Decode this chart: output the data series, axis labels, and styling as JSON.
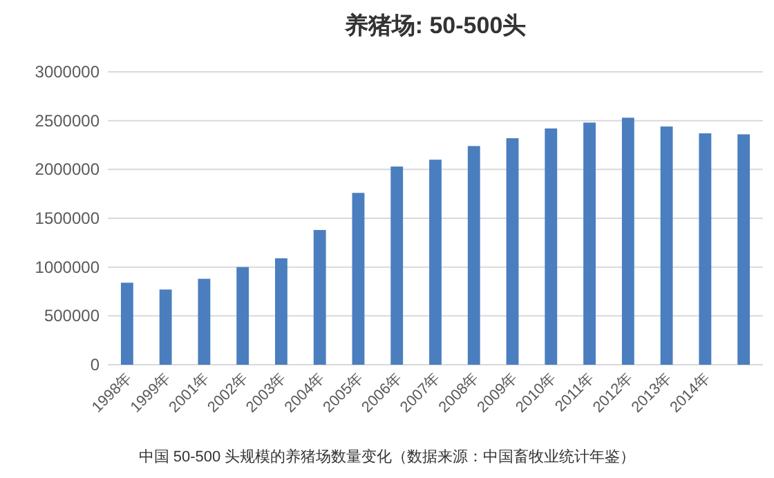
{
  "chart_data": {
    "type": "bar",
    "title": "养猪场: 50-500头",
    "categories": [
      "1998年",
      "1999年",
      "2001年",
      "2002年",
      "2003年",
      "2004年",
      "2005年",
      "2006年",
      "2007年",
      "2008年",
      "2009年",
      "2010年",
      "2011年",
      "2012年",
      "2013年",
      "2014年",
      null
    ],
    "values": [
      840000,
      770000,
      880000,
      1000000,
      1090000,
      1380000,
      1760000,
      2030000,
      2100000,
      2240000,
      2320000,
      2420000,
      2480000,
      2530000,
      2440000,
      2370000,
      2360000
    ],
    "color": "#4a7ebf",
    "ylim": [
      0,
      3000000
    ],
    "yticks": [
      0,
      500000,
      1000000,
      1500000,
      2000000,
      2500000,
      3000000
    ],
    "grid": "y",
    "annotations": [
      "中国  50-500 头规模的养猪场数量变化（数据来源：中国畜牧业统计年鉴）"
    ]
  }
}
